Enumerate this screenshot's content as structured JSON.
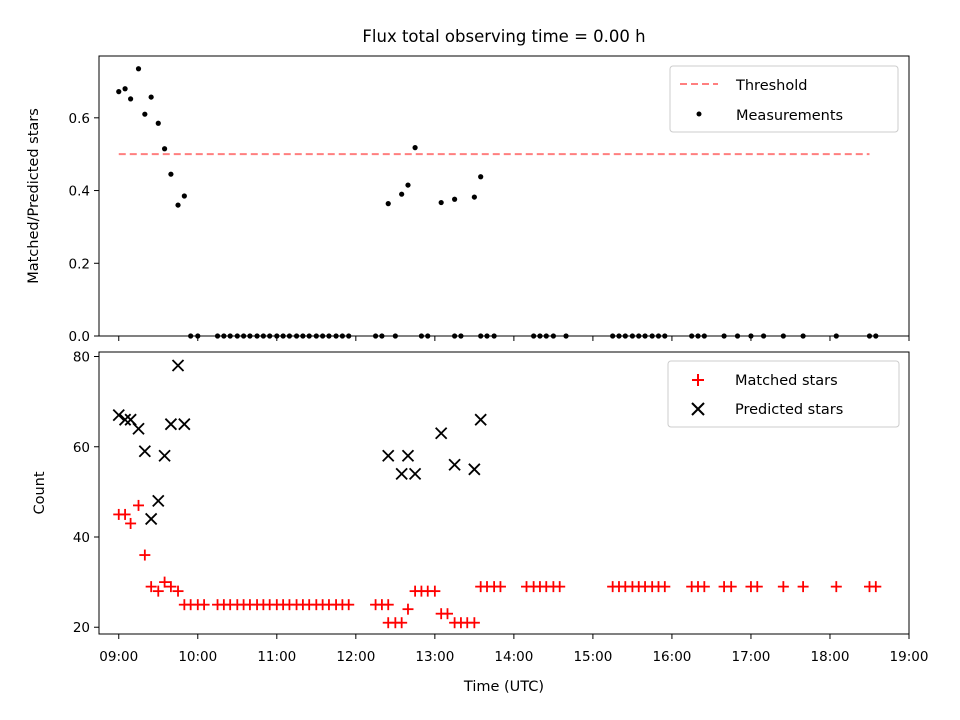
{
  "figure": {
    "title": "Flux total observing time = 0.00 h",
    "xlabel": "Time (UTC)"
  },
  "chart_data": [
    {
      "type": "scatter",
      "title": "Flux total observing time = 0.00 h",
      "xlabel": "",
      "ylabel": "Matched/Predicted stars",
      "xlim": [
        8.75,
        19.0
      ],
      "ylim": [
        0.0,
        0.77
      ],
      "x_ticks": [
        "09:00",
        "10:00",
        "11:00",
        "12:00",
        "13:00",
        "14:00",
        "15:00",
        "16:00",
        "17:00",
        "18:00",
        "19:00"
      ],
      "y_ticks": [
        "0.0",
        "0.2",
        "0.4",
        "0.6"
      ],
      "legend_position": "top-right",
      "threshold": {
        "name": "Threshold",
        "value": 0.5,
        "x": [
          9.0,
          18.5
        ],
        "color": "#ff7f7f",
        "style": "dashed"
      },
      "series": [
        {
          "name": "Measurements",
          "color": "#000000",
          "marker": "dot",
          "points": [
            [
              9.0,
              0.672
            ],
            [
              9.08,
              0.68
            ],
            [
              9.15,
              0.652
            ],
            [
              9.25,
              0.735
            ],
            [
              9.33,
              0.61
            ],
            [
              9.41,
              0.657
            ],
            [
              9.5,
              0.585
            ],
            [
              9.58,
              0.515
            ],
            [
              9.66,
              0.445
            ],
            [
              9.75,
              0.36
            ],
            [
              9.83,
              0.385
            ],
            [
              9.91,
              0
            ],
            [
              10.0,
              0
            ],
            [
              10.25,
              0
            ],
            [
              10.33,
              0
            ],
            [
              10.41,
              0
            ],
            [
              10.5,
              0
            ],
            [
              10.58,
              0
            ],
            [
              10.66,
              0
            ],
            [
              10.75,
              0
            ],
            [
              10.83,
              0
            ],
            [
              10.91,
              0
            ],
            [
              11.0,
              0
            ],
            [
              11.08,
              0
            ],
            [
              11.16,
              0
            ],
            [
              11.25,
              0
            ],
            [
              11.33,
              0
            ],
            [
              11.41,
              0
            ],
            [
              11.5,
              0
            ],
            [
              11.58,
              0
            ],
            [
              11.66,
              0
            ],
            [
              11.75,
              0
            ],
            [
              11.83,
              0
            ],
            [
              11.91,
              0
            ],
            [
              12.25,
              0
            ],
            [
              12.33,
              0
            ],
            [
              12.5,
              0
            ],
            [
              12.41,
              0.364
            ],
            [
              12.58,
              0.39
            ],
            [
              12.66,
              0.415
            ],
            [
              12.75,
              0.518
            ],
            [
              12.83,
              0
            ],
            [
              12.91,
              0
            ],
            [
              13.25,
              0
            ],
            [
              13.33,
              0
            ],
            [
              13.58,
              0
            ],
            [
              13.66,
              0
            ],
            [
              13.75,
              0
            ],
            [
              13.08,
              0.367
            ],
            [
              13.25,
              0.376
            ],
            [
              13.5,
              0.382
            ],
            [
              13.58,
              0.438
            ],
            [
              14.25,
              0
            ],
            [
              14.33,
              0
            ],
            [
              14.41,
              0
            ],
            [
              14.5,
              0
            ],
            [
              14.66,
              0
            ],
            [
              15.25,
              0
            ],
            [
              15.33,
              0
            ],
            [
              15.41,
              0
            ],
            [
              15.5,
              0
            ],
            [
              15.58,
              0
            ],
            [
              15.66,
              0
            ],
            [
              15.75,
              0
            ],
            [
              15.83,
              0
            ],
            [
              15.91,
              0
            ],
            [
              16.25,
              0
            ],
            [
              16.33,
              0
            ],
            [
              16.41,
              0
            ],
            [
              16.66,
              0
            ],
            [
              16.83,
              0
            ],
            [
              17.0,
              0
            ],
            [
              17.16,
              0
            ],
            [
              17.41,
              0
            ],
            [
              17.66,
              0
            ],
            [
              18.08,
              0
            ],
            [
              18.5,
              0
            ],
            [
              18.58,
              0
            ]
          ]
        }
      ]
    },
    {
      "type": "scatter",
      "title": "",
      "xlabel": "Time (UTC)",
      "ylabel": "Count",
      "xlim": [
        8.75,
        19.0
      ],
      "ylim": [
        18.5,
        81
      ],
      "x_ticks": [
        "09:00",
        "10:00",
        "11:00",
        "12:00",
        "13:00",
        "14:00",
        "15:00",
        "16:00",
        "17:00",
        "18:00",
        "19:00"
      ],
      "y_ticks": [
        "20",
        "40",
        "60",
        "80"
      ],
      "legend_position": "top-right",
      "series": [
        {
          "name": "Matched stars",
          "color": "#ff0000",
          "marker": "plus",
          "points": [
            [
              9.0,
              45
            ],
            [
              9.08,
              45
            ],
            [
              9.15,
              43
            ],
            [
              9.25,
              47
            ],
            [
              9.33,
              36
            ],
            [
              9.41,
              29
            ],
            [
              9.5,
              28
            ],
            [
              9.58,
              30
            ],
            [
              9.66,
              29
            ],
            [
              9.75,
              28
            ],
            [
              9.83,
              25
            ],
            [
              9.91,
              25
            ],
            [
              10.0,
              25
            ],
            [
              10.08,
              25
            ],
            [
              10.25,
              25
            ],
            [
              10.33,
              25
            ],
            [
              10.41,
              25
            ],
            [
              10.5,
              25
            ],
            [
              10.58,
              25
            ],
            [
              10.66,
              25
            ],
            [
              10.75,
              25
            ],
            [
              10.83,
              25
            ],
            [
              10.91,
              25
            ],
            [
              11.0,
              25
            ],
            [
              11.08,
              25
            ],
            [
              11.16,
              25
            ],
            [
              11.25,
              25
            ],
            [
              11.33,
              25
            ],
            [
              11.41,
              25
            ],
            [
              11.5,
              25
            ],
            [
              11.58,
              25
            ],
            [
              11.66,
              25
            ],
            [
              11.75,
              25
            ],
            [
              11.83,
              25
            ],
            [
              11.91,
              25
            ],
            [
              12.25,
              25
            ],
            [
              12.33,
              25
            ],
            [
              12.41,
              25
            ],
            [
              12.41,
              21
            ],
            [
              12.5,
              21
            ],
            [
              12.58,
              21
            ],
            [
              12.66,
              24
            ],
            [
              12.75,
              28
            ],
            [
              12.83,
              28
            ],
            [
              12.91,
              28
            ],
            [
              13.0,
              28
            ],
            [
              13.08,
              23
            ],
            [
              13.16,
              23
            ],
            [
              13.25,
              21
            ],
            [
              13.33,
              21
            ],
            [
              13.41,
              21
            ],
            [
              13.5,
              21
            ],
            [
              13.58,
              29
            ],
            [
              13.66,
              29
            ],
            [
              13.75,
              29
            ],
            [
              13.83,
              29
            ],
            [
              14.16,
              29
            ],
            [
              14.25,
              29
            ],
            [
              14.33,
              29
            ],
            [
              14.41,
              29
            ],
            [
              14.5,
              29
            ],
            [
              14.58,
              29
            ],
            [
              15.25,
              29
            ],
            [
              15.33,
              29
            ],
            [
              15.41,
              29
            ],
            [
              15.5,
              29
            ],
            [
              15.58,
              29
            ],
            [
              15.66,
              29
            ],
            [
              15.75,
              29
            ],
            [
              15.83,
              29
            ],
            [
              15.91,
              29
            ],
            [
              16.25,
              29
            ],
            [
              16.33,
              29
            ],
            [
              16.41,
              29
            ],
            [
              16.66,
              29
            ],
            [
              16.75,
              29
            ],
            [
              17.0,
              29
            ],
            [
              17.08,
              29
            ],
            [
              17.41,
              29
            ],
            [
              17.66,
              29
            ],
            [
              18.08,
              29
            ],
            [
              18.5,
              29
            ],
            [
              18.58,
              29
            ]
          ]
        },
        {
          "name": "Predicted stars",
          "color": "#000000",
          "marker": "x",
          "points": [
            [
              9.0,
              67
            ],
            [
              9.08,
              66
            ],
            [
              9.15,
              66
            ],
            [
              9.25,
              64
            ],
            [
              9.33,
              59
            ],
            [
              9.41,
              44
            ],
            [
              9.5,
              48
            ],
            [
              9.58,
              58
            ],
            [
              9.66,
              65
            ],
            [
              9.75,
              78
            ],
            [
              9.83,
              65
            ],
            [
              12.41,
              58
            ],
            [
              12.58,
              54
            ],
            [
              12.66,
              58
            ],
            [
              12.75,
              54
            ],
            [
              13.08,
              63
            ],
            [
              13.25,
              56
            ],
            [
              13.5,
              55
            ],
            [
              13.58,
              66
            ]
          ]
        }
      ]
    }
  ]
}
